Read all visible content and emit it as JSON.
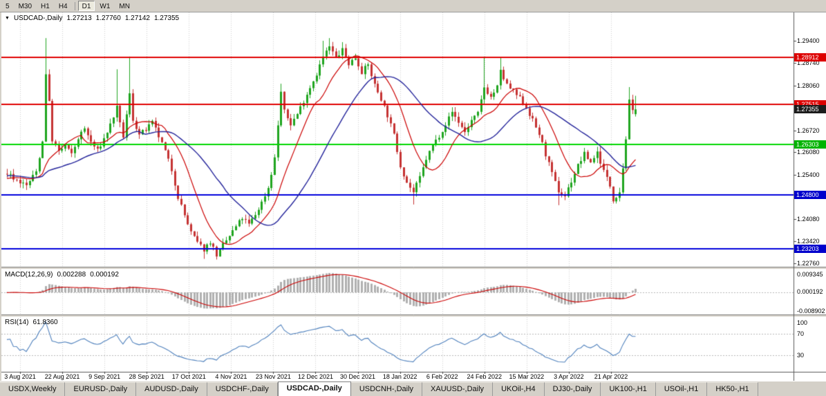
{
  "colors": {
    "bull": "#1fa51f",
    "bear": "#c53232",
    "ma_fast": "#cc0000",
    "ma_slow": "#24249b",
    "macd_hist": "#b0b0b0",
    "macd_signal": "#cc0000",
    "rsi_line": "#4f81bd",
    "grid": "#cfcfcf",
    "panel_bg": "#ffffff",
    "window_bg": "#d4d0c8"
  },
  "toolbar": {
    "timeframes": [
      {
        "label": "5",
        "active": false
      },
      {
        "label": "M30",
        "active": false
      },
      {
        "label": "H1",
        "active": false
      },
      {
        "label": "H4",
        "active": false,
        "sep_after": true
      },
      {
        "label": "D1",
        "active": true
      },
      {
        "label": "W1",
        "active": false
      },
      {
        "label": "MN",
        "active": false
      }
    ]
  },
  "chart": {
    "title": {
      "symbol": "USDCAD-,Daily",
      "open": "1.27213",
      "high": "1.27760",
      "low": "1.27142",
      "close": "1.27355"
    },
    "indicators": {
      "macd": {
        "name": "MACD(12,26,9)",
        "value": "0.002288",
        "signal": "0.000192",
        "axis": [
          "0.009345",
          "0.000192",
          "-0.008902"
        ]
      },
      "rsi": {
        "name": "RSI(14)",
        "value": "61.8360",
        "axis": [
          "100",
          "70",
          "30"
        ]
      }
    }
  },
  "chart_data": {
    "type": "candlestick",
    "symbol": "USDCAD-",
    "timeframe": "Daily",
    "last_candle": {
      "o": 1.27213,
      "h": 1.2776,
      "l": 1.27142,
      "c": 1.27355
    },
    "current_price": 1.27355,
    "candle_count": 196,
    "warmup_start": -34,
    "noise_seed": 7,
    "ma_periods": {
      "fast": 12,
      "slow": 30
    },
    "price_axis_ticks": [
      "1.29400",
      "1.28740",
      "1.28060",
      "1.26720",
      "1.26080",
      "1.25400",
      "1.24080",
      "1.23420",
      "1.22760"
    ],
    "levels": [
      {
        "price": 1.28912,
        "color": "#e00000"
      },
      {
        "price": 1.27515,
        "color": "#e00000"
      },
      {
        "price": 1.26303,
        "color": "#00d800"
      },
      {
        "price": 1.248,
        "color": "#0000dd"
      },
      {
        "price": 1.23203,
        "color": "#0000dd"
      }
    ],
    "badges": [
      {
        "label": "1.28912",
        "price": 1.28912,
        "color": "#dd0000"
      },
      {
        "label": "1.27515",
        "price": 1.27515,
        "color": "#dd0000"
      },
      {
        "label": "1.27355",
        "price": 1.27355,
        "color": "#1c1c1c"
      },
      {
        "label": "1.26303",
        "price": 1.26303,
        "color": "#00b400"
      },
      {
        "label": "1.24800",
        "price": 1.248,
        "color": "#0000cc"
      },
      {
        "label": "1.23203",
        "price": 1.23203,
        "color": "#0000cc"
      }
    ],
    "date_ticks": [
      "3 Aug 2021",
      "22 Aug 2021",
      "9 Sep 2021",
      "28 Sep 2021",
      "17 Oct 2021",
      "4 Nov 2021",
      "23 Nov 2021",
      "12 Dec 2021",
      "30 Dec 2021",
      "18 Jan 2022",
      "6 Feb 2022",
      "24 Feb 2022",
      "15 Mar 2022",
      "3 Apr 2022",
      "21 Apr 2022"
    ],
    "price_anchors": [
      [
        -34,
        1.253
      ],
      [
        -20,
        1.2555
      ],
      [
        -10,
        1.2515
      ],
      [
        0,
        1.2545
      ],
      [
        3,
        1.2525
      ],
      [
        6,
        1.2508
      ],
      [
        9,
        1.255
      ],
      [
        11,
        1.264
      ],
      [
        12,
        1.2845
      ],
      [
        13,
        1.2755
      ],
      [
        14,
        1.2645
      ],
      [
        16,
        1.2608
      ],
      [
        18,
        1.2628
      ],
      [
        20,
        1.26
      ],
      [
        22,
        1.265
      ],
      [
        24,
        1.2678
      ],
      [
        26,
        1.2638
      ],
      [
        28,
        1.2612
      ],
      [
        30,
        1.2648
      ],
      [
        32,
        1.269
      ],
      [
        34,
        1.274
      ],
      [
        35,
        1.269
      ],
      [
        36,
        1.2655
      ],
      [
        38,
        1.278
      ],
      [
        39,
        1.2705
      ],
      [
        41,
        1.266
      ],
      [
        43,
        1.2675
      ],
      [
        45,
        1.2695
      ],
      [
        47,
        1.2655
      ],
      [
        49,
        1.261
      ],
      [
        51,
        1.2555
      ],
      [
        53,
        1.2475
      ],
      [
        55,
        1.242
      ],
      [
        57,
        1.2368
      ],
      [
        59,
        1.2338
      ],
      [
        61,
        1.2318
      ],
      [
        63,
        1.2342
      ],
      [
        65,
        1.2302
      ],
      [
        67,
        1.233
      ],
      [
        69,
        1.2358
      ],
      [
        71,
        1.2386
      ],
      [
        73,
        1.2412
      ],
      [
        75,
        1.2392
      ],
      [
        77,
        1.2422
      ],
      [
        79,
        1.2458
      ],
      [
        81,
        1.2502
      ],
      [
        83,
        1.259
      ],
      [
        85,
        1.2788
      ],
      [
        86,
        1.2728
      ],
      [
        88,
        1.2692
      ],
      [
        90,
        1.2722
      ],
      [
        92,
        1.2762
      ],
      [
        94,
        1.2802
      ],
      [
        96,
        1.2842
      ],
      [
        98,
        1.2892
      ],
      [
        100,
        1.2922
      ],
      [
        102,
        1.2888
      ],
      [
        104,
        1.2912
      ],
      [
        106,
        1.2872
      ],
      [
        108,
        1.289
      ],
      [
        110,
        1.2848
      ],
      [
        112,
        1.2868
      ],
      [
        114,
        1.2808
      ],
      [
        116,
        1.2768
      ],
      [
        118,
        1.2718
      ],
      [
        120,
        1.2658
      ],
      [
        122,
        1.2568
      ],
      [
        124,
        1.2518
      ],
      [
        126,
        1.2488
      ],
      [
        128,
        1.2532
      ],
      [
        130,
        1.2588
      ],
      [
        132,
        1.2628
      ],
      [
        134,
        1.2658
      ],
      [
        136,
        1.2692
      ],
      [
        138,
        1.2728
      ],
      [
        140,
        1.2698
      ],
      [
        142,
        1.2668
      ],
      [
        144,
        1.2702
      ],
      [
        146,
        1.2722
      ],
      [
        148,
        1.2802
      ],
      [
        150,
        1.2772
      ],
      [
        152,
        1.2802
      ],
      [
        153,
        1.2848
      ],
      [
        155,
        1.2808
      ],
      [
        157,
        1.2788
      ],
      [
        159,
        1.2768
      ],
      [
        161,
        1.2742
      ],
      [
        163,
        1.2702
      ],
      [
        165,
        1.2662
      ],
      [
        167,
        1.2602
      ],
      [
        169,
        1.2542
      ],
      [
        171,
        1.2492
      ],
      [
        173,
        1.2478
      ],
      [
        175,
        1.2522
      ],
      [
        177,
        1.2568
      ],
      [
        179,
        1.2602
      ],
      [
        181,
        1.2578
      ],
      [
        183,
        1.2608
      ],
      [
        185,
        1.2552
      ],
      [
        187,
        1.2508
      ],
      [
        188,
        1.2468
      ],
      [
        189,
        1.2478
      ],
      [
        190,
        1.2492
      ],
      [
        191,
        1.2562
      ],
      [
        192,
        1.265
      ],
      [
        193,
        1.2758
      ],
      [
        194,
        1.2728
      ],
      [
        195,
        1.27355
      ]
    ],
    "high_spikes": {
      "12": 1.2948,
      "34": 1.2855,
      "38": 1.2893,
      "85": 1.2812,
      "98": 1.294,
      "100": 1.2948,
      "104": 1.2936,
      "148": 1.2893,
      "153": 1.289,
      "193": 1.2802
    },
    "low_spikes": {
      "61": 1.229,
      "65": 1.2288,
      "126": 1.2452,
      "171": 1.245,
      "188": 1.2455
    }
  },
  "tabs": [
    {
      "label": "USDX,Weekly",
      "active": false
    },
    {
      "label": "EURUSD-,Daily",
      "active": false
    },
    {
      "label": "AUDUSD-,Daily",
      "active": false
    },
    {
      "label": "USDCHF-,Daily",
      "active": false
    },
    {
      "label": "USDCAD-,Daily",
      "active": true
    },
    {
      "label": "USDCNH-,Daily",
      "active": false
    },
    {
      "label": "XAUUSD-,Daily",
      "active": false
    },
    {
      "label": "UKOil-,H4",
      "active": false
    },
    {
      "label": "DJ30-,Daily",
      "active": false
    },
    {
      "label": "UK100-,H1",
      "active": false
    },
    {
      "label": "USOil-,H1",
      "active": false
    },
    {
      "label": "HK50-,H1",
      "active": false
    }
  ]
}
